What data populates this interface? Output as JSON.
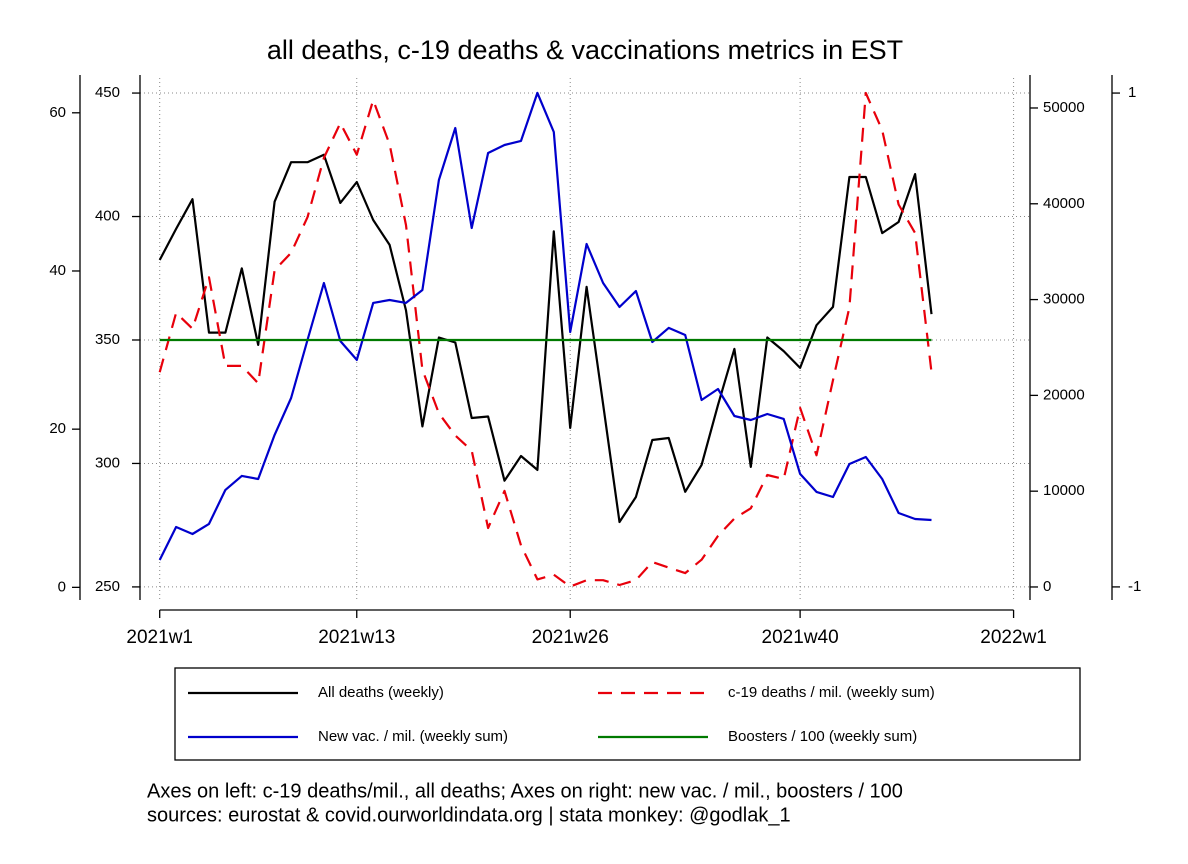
{
  "chart_data": {
    "type": "line",
    "title": "all deaths, c-19 deaths & vaccinations metrics in EST",
    "notes": [
      "Axes on left: c-19 deaths/mil., all deaths; Axes on right: new vac. / mil., boosters / 100",
      "sources: eurostat & covid.ourworldindata.org | stata monkey: @godlak_1"
    ],
    "x": [
      1,
      2,
      3,
      4,
      5,
      6,
      7,
      8,
      9,
      10,
      11,
      12,
      13,
      14,
      15,
      16,
      17,
      18,
      19,
      20,
      21,
      22,
      23,
      24,
      25,
      26,
      27,
      28,
      29,
      30,
      31,
      32,
      33,
      34,
      35,
      36,
      37,
      38,
      39,
      40,
      41,
      42,
      43,
      44,
      45,
      46,
      47,
      48
    ],
    "xlim": [
      -0.2,
      54
    ],
    "xticks": [
      {
        "value": 1,
        "label": "2021w1"
      },
      {
        "value": 13,
        "label": "2021w13"
      },
      {
        "value": 26,
        "label": "2021w26"
      },
      {
        "value": 40,
        "label": "2021w40"
      },
      {
        "value": 53,
        "label": "2022w1"
      }
    ],
    "ylim": [
      244.7,
      456.1
    ],
    "yticks": [
      250,
      300,
      350,
      400,
      450
    ],
    "y2lim": [
      -1.6,
      64.4
    ],
    "y2ticks": [
      0,
      20,
      40,
      60
    ],
    "y3lim": [
      -1360,
      53130
    ],
    "y3ticks": [
      0,
      10000,
      20000,
      30000,
      40000,
      50000
    ],
    "y4lim": [
      -1.053,
      1.061
    ],
    "y4ticks": [
      -1,
      1
    ],
    "grid": true,
    "legend": "bottom",
    "series": [
      {
        "name": "All deaths (weekly)",
        "color": "#000000",
        "axis": "y",
        "dash": false,
        "values": [
          382.4,
          395,
          407,
          353,
          353,
          379,
          348,
          406,
          422,
          422,
          425,
          405.5,
          414,
          398.6,
          388.5,
          362,
          315,
          351,
          349,
          318.4,
          319,
          293,
          303,
          297.4,
          394,
          314.4,
          371.5,
          324,
          276.3,
          286.4,
          309.5,
          310.3,
          288.5,
          299.4,
          323.7,
          346.4,
          298.6,
          351,
          345.5,
          338.7,
          356,
          363.4,
          416,
          416,
          393.3,
          397.8,
          417.2,
          360.5
        ]
      },
      {
        "name": "c-19 deaths / mil. (weekly sum)",
        "color": "#e8000b",
        "axis": "y2",
        "dash": true,
        "values": [
          27.2,
          34.7,
          32.7,
          39.2,
          28,
          28,
          25.8,
          40.1,
          42.3,
          46.8,
          54.3,
          58.7,
          54.7,
          61.6,
          56,
          45.8,
          27.5,
          22,
          19.2,
          17.3,
          7.5,
          12.2,
          5.3,
          1,
          1.6,
          0.1,
          0.9,
          0.9,
          0.3,
          0.9,
          3.2,
          2.5,
          1.8,
          3.5,
          6.5,
          8.7,
          10,
          14.2,
          13.7,
          22.7,
          16.7,
          26.2,
          35.4,
          62.5,
          57.8,
          48.4,
          44.8,
          27.2
        ]
      },
      {
        "name": "New vac. / mil. (weekly sum)",
        "color": "#0000cc",
        "axis": "y3",
        "dash": false,
        "values": [
          2820,
          6260,
          5530,
          6580,
          10130,
          11590,
          11270,
          15870,
          19730,
          25780,
          31730,
          25680,
          23700,
          29650,
          29960,
          29650,
          31000,
          42480,
          47910,
          37470,
          45300,
          46140,
          46560,
          51570,
          47490,
          26620,
          35800,
          31730,
          29230,
          30900,
          25570,
          27040,
          26300,
          19520,
          20670,
          17850,
          17430,
          18060,
          17540,
          11800,
          9920,
          9390,
          12840,
          13570,
          11270,
          7720,
          7100,
          6990
        ]
      },
      {
        "name": "Boosters / 100 (weekly sum)",
        "color": "#007a00",
        "axis": "y4",
        "dash": false,
        "values": [
          0,
          0,
          0,
          0,
          0,
          0,
          0,
          0,
          0,
          0,
          0,
          0,
          0,
          0,
          0,
          0,
          0,
          0,
          0,
          0,
          0,
          0,
          0,
          0,
          0,
          0,
          0,
          0,
          0,
          0,
          0,
          0,
          0,
          0,
          0,
          0,
          0,
          0,
          0,
          0,
          0,
          0,
          0,
          0,
          0,
          0,
          0,
          0
        ]
      }
    ]
  }
}
